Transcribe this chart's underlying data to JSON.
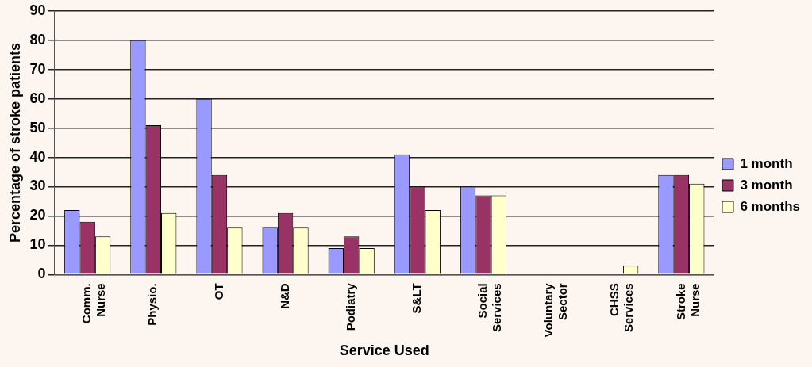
{
  "chart_data": {
    "type": "bar",
    "xlabel": "Service Used",
    "ylabel": "Percentage of stroke patients",
    "categories": [
      "Comm. Nurse",
      "Physio.",
      "OT",
      "N&D",
      "Podiatry",
      "S&LT",
      "Social Services",
      "Voluntary Sector",
      "CHSS Services",
      "Stroke Nurse"
    ],
    "series": [
      {
        "name": "1 month",
        "color": "#9999ff",
        "values": [
          22,
          80,
          60,
          16,
          9,
          41,
          30,
          0,
          0,
          34
        ]
      },
      {
        "name": "3 month",
        "color": "#993366",
        "values": [
          18,
          51,
          34,
          21,
          13,
          30,
          27,
          0,
          0,
          34
        ]
      },
      {
        "name": "6 months",
        "color": "#ffffcc",
        "values": [
          13,
          21,
          16,
          16,
          9,
          22,
          27,
          0,
          3,
          31
        ]
      }
    ],
    "ylim": [
      0,
      90
    ],
    "yticks": [
      0,
      10,
      20,
      30,
      40,
      50,
      60,
      70,
      80,
      90
    ],
    "grid": "y",
    "legend": "right"
  }
}
